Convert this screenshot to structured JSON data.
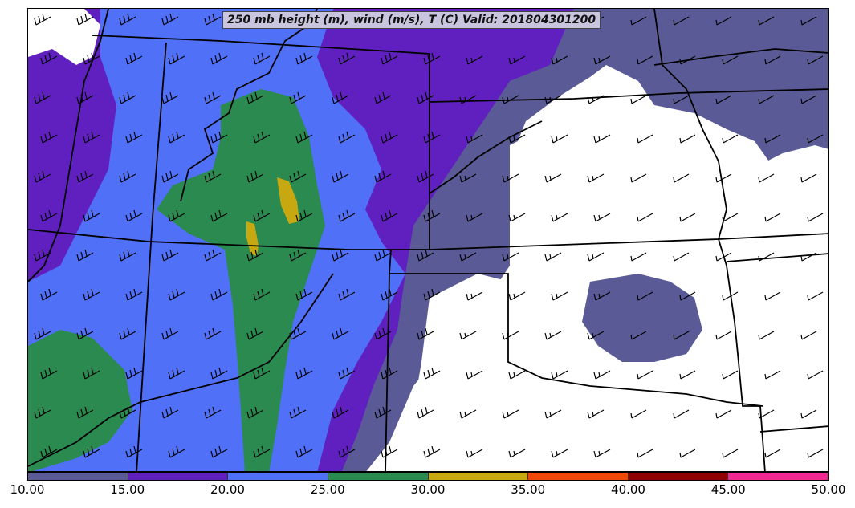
{
  "title": "250 mb height (m), wind (m/s), T (C) Valid: 201804301200",
  "colorbar": {
    "ticks": [
      "10.00",
      "15.00",
      "20.00",
      "25.00",
      "30.00",
      "35.00",
      "40.00",
      "45.00",
      "50.00"
    ],
    "colors": [
      "#5a5a96",
      "#6020c0",
      "#5070f8",
      "#2a8a50",
      "#c8a810",
      "#f04808",
      "#900000",
      "#f02890"
    ]
  },
  "palette": {
    "background": "#ffffff",
    "band_10_15": "#5a5a96",
    "band_15_20": "#6020c0",
    "band_20_25": "#5070f8",
    "band_25_30": "#2a8a50",
    "band_30_35": "#c8a810",
    "boundaries": "#000000",
    "barbs": "#000000"
  }
}
